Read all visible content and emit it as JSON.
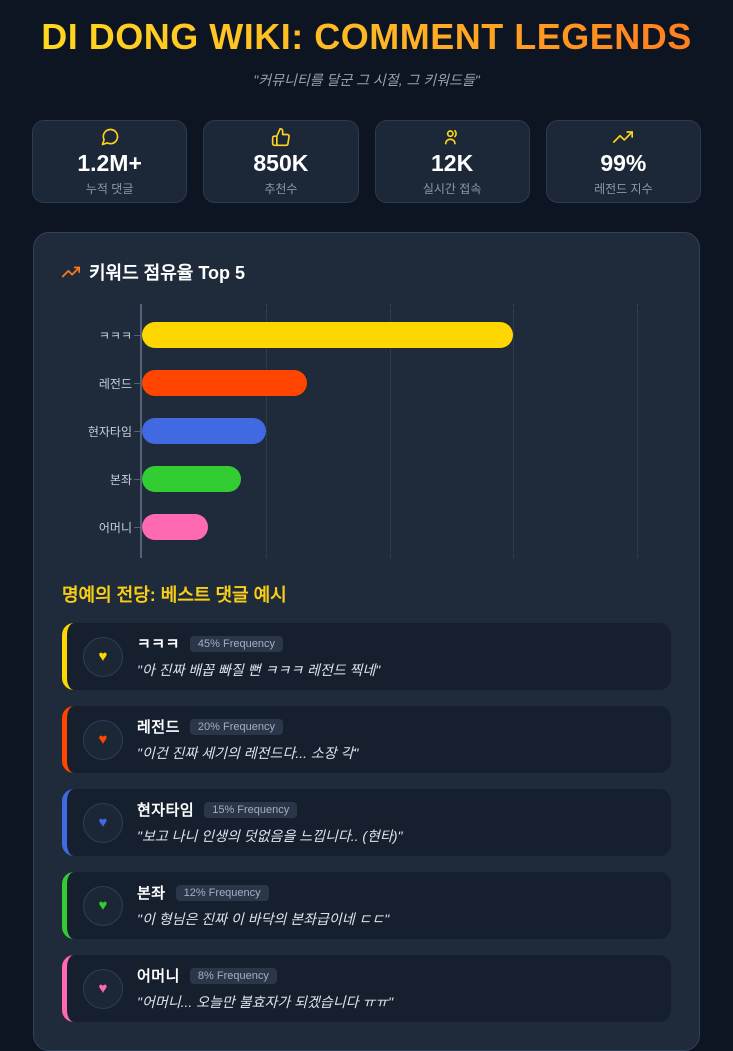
{
  "header": {
    "title": "DI DONG WIKI: COMMENT LEGENDS",
    "subtitle": "\"커뮤니티를 달군 그 시절, 그 키워드들\""
  },
  "stats": {
    "items": [
      {
        "icon": "chat-bubble-icon",
        "value": "1.2M+",
        "label": "누적 댓글"
      },
      {
        "icon": "thumbs-up-icon",
        "value": "850K",
        "label": "추천수"
      },
      {
        "icon": "live-users-icon",
        "value": "12K",
        "label": "실시간 접속"
      },
      {
        "icon": "trending-up-icon",
        "value": "99%",
        "label": "레전드 지수"
      }
    ]
  },
  "chart_section": {
    "title": "키워드 점유율 Top 5",
    "icon": "trending-up-icon"
  },
  "chart_data": {
    "type": "bar",
    "orientation": "horizontal",
    "title": "키워드 점유율 Top 5",
    "categories": [
      "ㅋㅋㅋ",
      "레전드",
      "현자타임",
      "본좌",
      "어머니"
    ],
    "values": [
      45,
      20,
      15,
      12,
      8
    ],
    "unit": "% frequency",
    "colors": [
      "#ffd700",
      "#ff4500",
      "#4169e1",
      "#32cd32",
      "#ff69b4"
    ],
    "xlim": [
      0,
      64.1
    ],
    "gridlines": [
      15,
      30,
      45,
      60
    ],
    "grid_style": "dotted-vertical",
    "legend": "none"
  },
  "comments": {
    "title": "명예의 전당: 베스트 댓글 예시",
    "items": [
      {
        "keyword": "ㅋㅋㅋ",
        "frequency_label": "45% Frequency",
        "quote": "\"아 진짜 배꼽 빠질 뻔 ㅋㅋㅋ 레전드 찍네\"",
        "color": "#ffd700",
        "icon": "heart-icon"
      },
      {
        "keyword": "레전드",
        "frequency_label": "20% Frequency",
        "quote": "\"이건 진짜 세기의 레전드다... 소장 각\"",
        "color": "#ff4500",
        "icon": "heart-icon"
      },
      {
        "keyword": "현자타임",
        "frequency_label": "15% Frequency",
        "quote": "\"보고 나니 인생의 덧없음을 느낍니다.. (현타)\"",
        "color": "#4169e1",
        "icon": "heart-icon"
      },
      {
        "keyword": "본좌",
        "frequency_label": "12% Frequency",
        "quote": "\"이 형님은 진짜 이 바닥의 본좌급이네 ㄷㄷ\"",
        "color": "#32cd32",
        "icon": "heart-icon"
      },
      {
        "keyword": "어머니",
        "frequency_label": "8% Frequency",
        "quote": "\"어머니... 오늘만 불효자가 되겠습니다 ㅠㅠ\"",
        "color": "#ff69b4",
        "icon": "heart-icon"
      }
    ]
  },
  "colors": {
    "page_background": "#0d1422",
    "panel_background": "#1f2a3b",
    "card_background": "#161f2e",
    "stat_card_background": "#1c2737",
    "title_gradient_start": "#ffd91f",
    "title_gradient_end": "#ff7a1e",
    "accent_gold": "#ffd21e",
    "accent_orange": "#f9791d"
  }
}
